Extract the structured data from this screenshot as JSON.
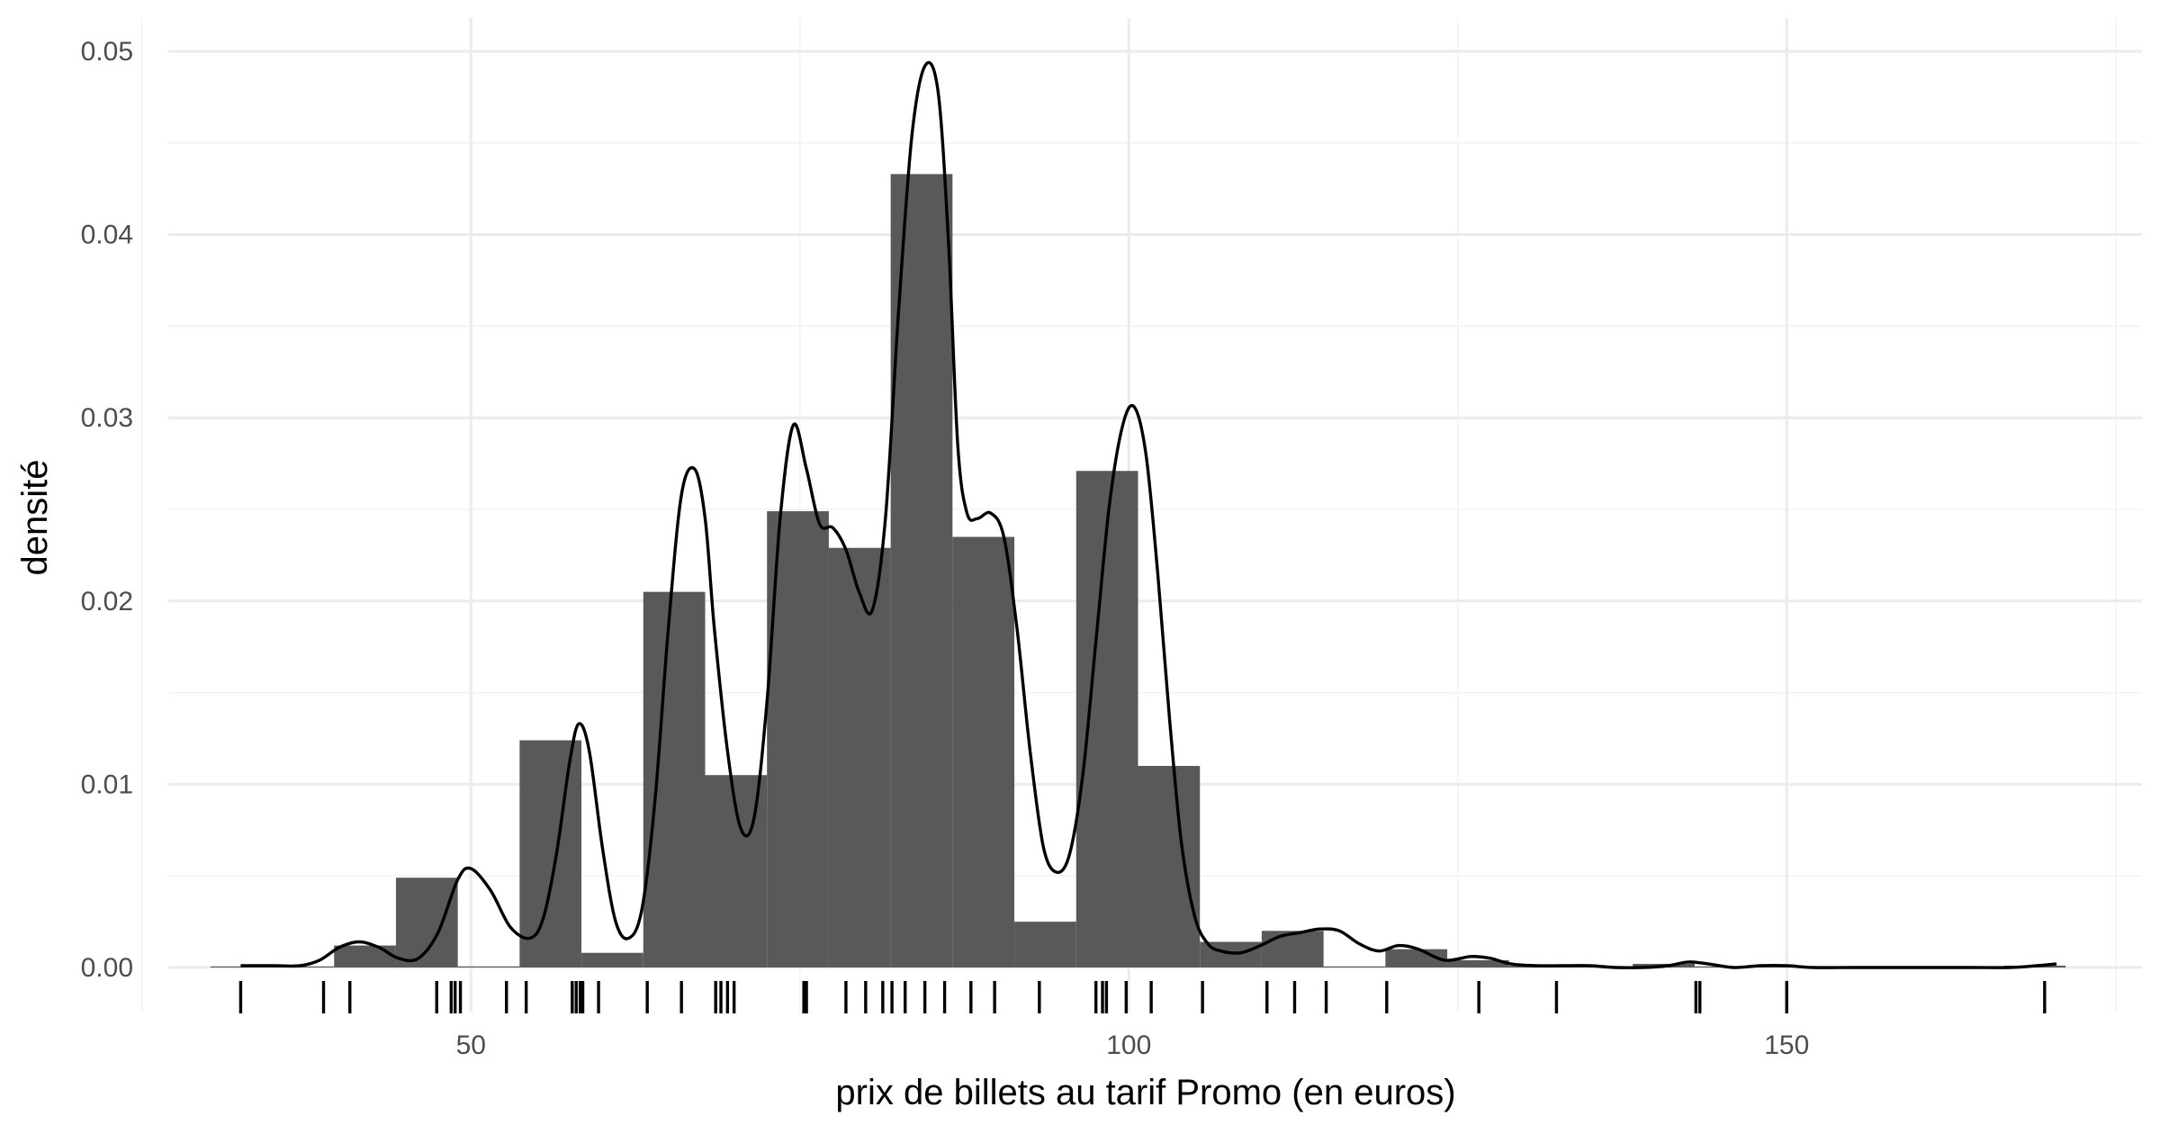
{
  "chart_data": {
    "type": "bar",
    "subtype": "histogram with density curve and rug",
    "xlabel": "prix de billets au tarif Promo (en euros)",
    "ylabel": "densité",
    "xlim": [
      27,
      177
    ],
    "ylim": [
      0,
      0.05
    ],
    "x_ticks": [
      50,
      100,
      150
    ],
    "x_tick_labels": [
      "50",
      "100",
      "150"
    ],
    "y_ticks": [
      0,
      0.01,
      0.02,
      0.03,
      0.04,
      0.05
    ],
    "y_tick_labels": [
      "0.00",
      "0.01",
      "0.02",
      "0.03",
      "0.04",
      "0.05"
    ],
    "grid": true,
    "bar_color": "#595959",
    "line_color": "#000000",
    "bins": [
      {
        "x0": 30.2,
        "x1": 34.9,
        "value": 0.0
      },
      {
        "x0": 34.9,
        "x1": 39.6,
        "value": 0.0
      },
      {
        "x0": 39.6,
        "x1": 44.3,
        "value": 0.0012
      },
      {
        "x0": 44.3,
        "x1": 49.0,
        "value": 0.0049
      },
      {
        "x0": 49.0,
        "x1": 53.7,
        "value": 0.0
      },
      {
        "x0": 53.7,
        "x1": 58.4,
        "value": 0.0124
      },
      {
        "x0": 58.4,
        "x1": 63.1,
        "value": 0.0008
      },
      {
        "x0": 63.1,
        "x1": 67.8,
        "value": 0.0205
      },
      {
        "x0": 67.8,
        "x1": 72.5,
        "value": 0.0105
      },
      {
        "x0": 72.5,
        "x1": 77.2,
        "value": 0.0249
      },
      {
        "x0": 77.2,
        "x1": 81.9,
        "value": 0.0229
      },
      {
        "x0": 81.9,
        "x1": 86.6,
        "value": 0.0433
      },
      {
        "x0": 86.6,
        "x1": 91.3,
        "value": 0.0235
      },
      {
        "x0": 91.3,
        "x1": 96.0,
        "value": 0.0025
      },
      {
        "x0": 96.0,
        "x1": 100.7,
        "value": 0.0271
      },
      {
        "x0": 100.7,
        "x1": 105.4,
        "value": 0.011
      },
      {
        "x0": 105.4,
        "x1": 110.1,
        "value": 0.0014
      },
      {
        "x0": 110.1,
        "x1": 114.8,
        "value": 0.002
      },
      {
        "x0": 114.8,
        "x1": 119.5,
        "value": 0.0
      },
      {
        "x0": 119.5,
        "x1": 124.2,
        "value": 0.001
      },
      {
        "x0": 124.2,
        "x1": 128.9,
        "value": 0.0004
      },
      {
        "x0": 128.9,
        "x1": 133.6,
        "value": 0.0001
      },
      {
        "x0": 133.6,
        "x1": 138.3,
        "value": 0.0
      },
      {
        "x0": 138.3,
        "x1": 143.0,
        "value": 0.0002
      },
      {
        "x0": 143.0,
        "x1": 147.7,
        "value": 0.0
      },
      {
        "x0": 147.7,
        "x1": 152.4,
        "value": 0.0
      },
      {
        "x0": 152.4,
        "x1": 157.1,
        "value": 0.0
      },
      {
        "x0": 157.1,
        "x1": 161.8,
        "value": 0.0
      },
      {
        "x0": 161.8,
        "x1": 166.5,
        "value": 0.0
      },
      {
        "x0": 166.5,
        "x1": 171.2,
        "value": 0.0001
      }
    ],
    "density": {
      "x": [
        32.5,
        35,
        37,
        38.5,
        40,
        41.5,
        43,
        44.5,
        46,
        47.5,
        49,
        50,
        51.5,
        53,
        54.5,
        55.5,
        56.5,
        57.5,
        58.2,
        59,
        60,
        61,
        62,
        63,
        64,
        65,
        66,
        67,
        67.8,
        68.5,
        69.5,
        70.5,
        71.5,
        72.5,
        73.5,
        74.5,
        75.5,
        76.5,
        77.5,
        78.5,
        79.5,
        80.5,
        81.5,
        82.5,
        83.5,
        84.5,
        85.5,
        86.3,
        87,
        87.7,
        88.5,
        89.5,
        90.5,
        91.5,
        92.5,
        93.5,
        94.5,
        95.5,
        96.5,
        97.5,
        98.5,
        99.5,
        100.4,
        101.3,
        102.2,
        103.1,
        104,
        105,
        106,
        107,
        108.5,
        110,
        111.5,
        113,
        114.5,
        116,
        117.5,
        119,
        120.5,
        122,
        124,
        126,
        127.5,
        129,
        131,
        133,
        135,
        137,
        139,
        141,
        142.5,
        144,
        146,
        148,
        150,
        152,
        155,
        158,
        161,
        164,
        167,
        169,
        170.5
      ],
      "y": [
        0.0001,
        0.0001,
        0.0001,
        0.0004,
        0.0011,
        0.0014,
        0.0011,
        0.0005,
        0.0005,
        0.0019,
        0.0048,
        0.0054,
        0.0042,
        0.0022,
        0.0016,
        0.0027,
        0.0062,
        0.0112,
        0.0133,
        0.0118,
        0.0065,
        0.0025,
        0.0016,
        0.0032,
        0.0092,
        0.0185,
        0.0258,
        0.0272,
        0.0245,
        0.0185,
        0.0118,
        0.0076,
        0.0081,
        0.0145,
        0.0245,
        0.0296,
        0.0272,
        0.0242,
        0.024,
        0.0228,
        0.0205,
        0.0195,
        0.0245,
        0.0358,
        0.0453,
        0.0492,
        0.0478,
        0.0395,
        0.0285,
        0.0248,
        0.0245,
        0.0248,
        0.0235,
        0.0185,
        0.0118,
        0.0066,
        0.0052,
        0.0062,
        0.0105,
        0.0178,
        0.0251,
        0.0295,
        0.0306,
        0.028,
        0.0215,
        0.0135,
        0.0068,
        0.0028,
        0.0013,
        0.0009,
        0.0008,
        0.0012,
        0.0017,
        0.0019,
        0.0021,
        0.002,
        0.0013,
        0.0009,
        0.0012,
        0.001,
        0.0004,
        0.0006,
        0.0005,
        0.0002,
        0.0001,
        0.0001,
        0.0001,
        0.0,
        0.0,
        0.0001,
        0.0003,
        0.0002,
        0.0,
        0.0001,
        0.0001,
        0.0,
        0.0,
        0.0,
        0.0,
        0.0,
        0.0,
        0.0001,
        0.0002
      ]
    },
    "rug": [
      32.5,
      38.8,
      40.8,
      47.4,
      48.5,
      48.8,
      49.2,
      52.7,
      54.2,
      57.7,
      58.0,
      58.3,
      58.5,
      59.7,
      63.4,
      66.0,
      68.6,
      69.0,
      69.5,
      70.0,
      75.3,
      75.5,
      78.5,
      80.0,
      81.3,
      82.0,
      83.0,
      84.5,
      86.0,
      88.0,
      89.8,
      93.2,
      97.5,
      98.0,
      98.3,
      99.8,
      101.7,
      105.6,
      110.5,
      112.6,
      115.0,
      119.6,
      126.6,
      132.5,
      143.1,
      143.4,
      150.0,
      169.6
    ]
  }
}
